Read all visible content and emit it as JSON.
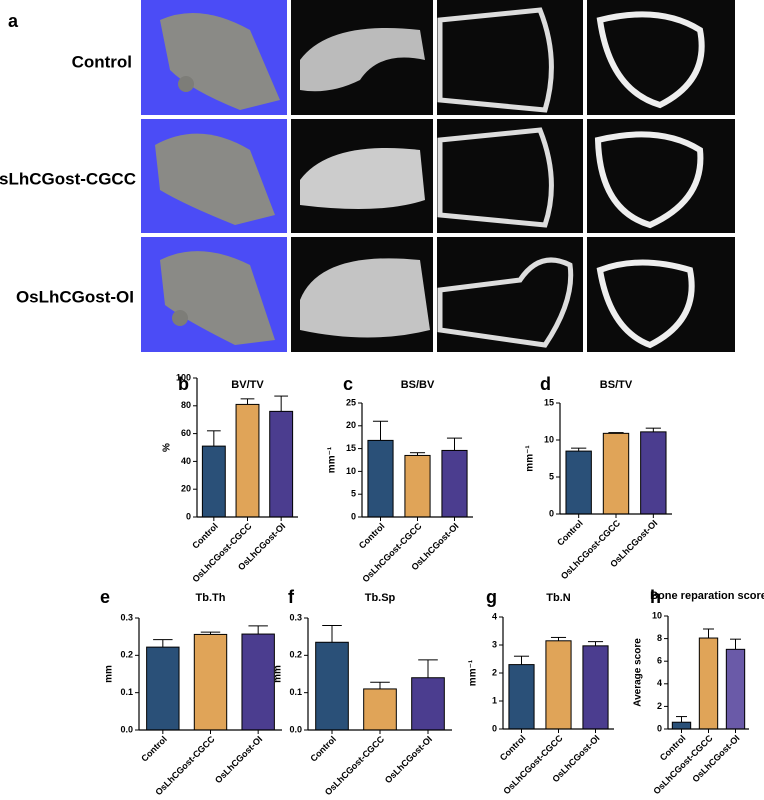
{
  "panel_a": {
    "label": "a",
    "rows": [
      "Control",
      "OsLhCGost-CGCC",
      "OsLhCGost-OI"
    ]
  },
  "chart_data": [
    {
      "type": "bar",
      "panel": "b",
      "title": "BV/TV",
      "ylabel": "%",
      "categories": [
        "Control",
        "OsLhCGost-CGCC",
        "OsLhCGost-OI"
      ],
      "values": [
        51,
        81,
        76
      ],
      "errors": [
        11,
        4,
        11
      ],
      "colors": [
        "#2a5078",
        "#e0a458",
        "#4b3d8f"
      ],
      "ylim": [
        0,
        100
      ],
      "yticks": [
        0,
        20,
        40,
        60,
        80,
        100
      ]
    },
    {
      "type": "bar",
      "panel": "c",
      "title": "BS/BV",
      "ylabel": "mm⁻¹",
      "categories": [
        "Control",
        "OsLhCGost-CGCC",
        "OsLhCGost-OI"
      ],
      "values": [
        16.8,
        13.5,
        14.6
      ],
      "errors": [
        4.2,
        0.6,
        2.7
      ],
      "colors": [
        "#2a5078",
        "#e0a458",
        "#4b3d8f"
      ],
      "ylim": [
        0,
        25
      ],
      "yticks": [
        0,
        5,
        10,
        15,
        20,
        25
      ]
    },
    {
      "type": "bar",
      "panel": "d",
      "title": "BS/TV",
      "ylabel": "mm⁻¹",
      "categories": [
        "Control",
        "OsLhCGost-CGCC",
        "OsLhCGost-OI"
      ],
      "values": [
        8.5,
        10.9,
        11.1
      ],
      "errors": [
        0.4,
        0.1,
        0.5
      ],
      "colors": [
        "#2a5078",
        "#e0a458",
        "#4b3d8f"
      ],
      "ylim": [
        0,
        15
      ],
      "yticks": [
        0,
        5,
        10,
        15
      ]
    },
    {
      "type": "bar",
      "panel": "e",
      "title": "Tb.Th",
      "ylabel": "mm",
      "categories": [
        "Control",
        "OsLhCGost-CGCC",
        "OsLhCGost-OI"
      ],
      "values": [
        0.222,
        0.256,
        0.257
      ],
      "errors": [
        0.02,
        0.006,
        0.022
      ],
      "colors": [
        "#2a5078",
        "#e0a458",
        "#4b3d8f"
      ],
      "ylim": [
        0,
        0.3
      ],
      "yticks": [
        {
          "value": 0,
          "label": "0.0"
        },
        0.1,
        0.2,
        0.3
      ]
    },
    {
      "type": "bar",
      "panel": "f",
      "title": "Tb.Sp",
      "ylabel": "mm",
      "categories": [
        "Control",
        "OsLhCGost-CGCC",
        "OsLhCGost-OI"
      ],
      "values": [
        0.235,
        0.11,
        0.14
      ],
      "errors": [
        0.045,
        0.018,
        0.048
      ],
      "colors": [
        "#2a5078",
        "#e0a458",
        "#4b3d8f"
      ],
      "ylim": [
        0,
        0.3
      ],
      "yticks": [
        {
          "value": 0,
          "label": "0.0"
        },
        0.1,
        0.2,
        0.3
      ]
    },
    {
      "type": "bar",
      "panel": "g",
      "title": "Tb.N",
      "ylabel": "mm⁻¹",
      "categories": [
        "Control",
        "OsLhCGost-CGCC",
        "OsLhCGost-OI"
      ],
      "values": [
        2.3,
        3.15,
        2.97
      ],
      "errors": [
        0.3,
        0.12,
        0.15
      ],
      "colors": [
        "#2a5078",
        "#e0a458",
        "#4b3d8f"
      ],
      "ylim": [
        0,
        4
      ],
      "yticks": [
        0,
        1,
        2,
        3,
        4
      ]
    },
    {
      "type": "bar",
      "panel": "h",
      "title": "Bone reparation score",
      "ylabel": "Average score",
      "categories": [
        "Control",
        "OsLhCGost-CGCC",
        "OsLhCGost-OI"
      ],
      "values": [
        0.6,
        8.05,
        7.05
      ],
      "errors": [
        0.5,
        0.8,
        0.9
      ],
      "colors": [
        "#2a5078",
        "#e0a458",
        "#6a5aa8"
      ],
      "ylim": [
        0,
        10
      ],
      "yticks": [
        0,
        2,
        4,
        6,
        8,
        10
      ]
    }
  ]
}
